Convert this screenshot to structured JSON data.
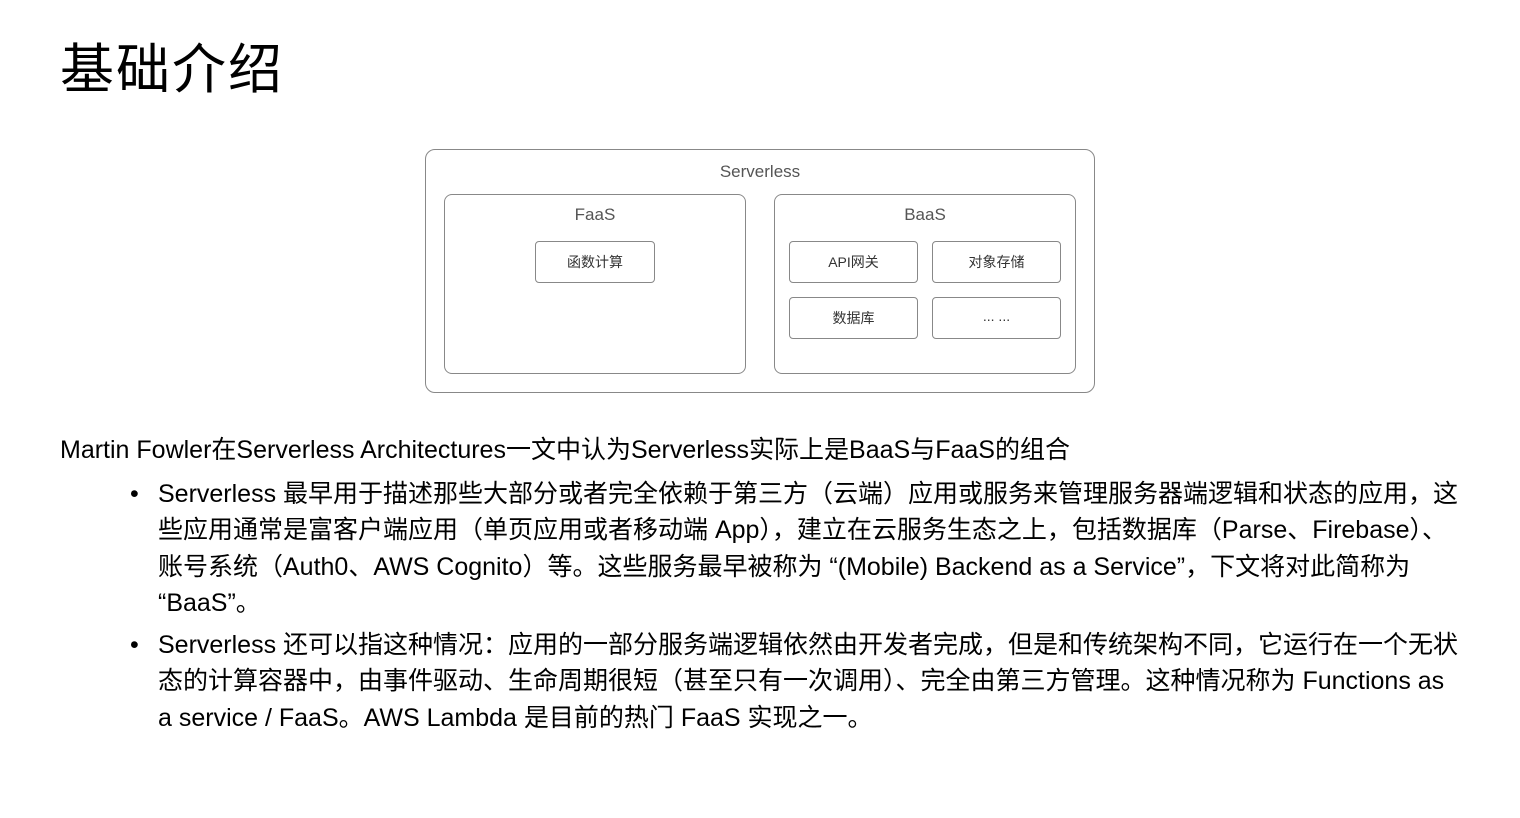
{
  "title": "基础介绍",
  "diagram": {
    "outer_label": "Serverless",
    "left": {
      "label": "FaaS",
      "items": [
        "函数计算"
      ]
    },
    "right": {
      "label": "BaaS",
      "items": [
        "API网关",
        "对象存储",
        "数据库",
        "... ..."
      ]
    },
    "border_color": "#888888",
    "background": "#ffffff",
    "label_color": "#555555",
    "item_text_color": "#333333"
  },
  "intro": "Martin Fowler在Serverless Architectures一文中认为Serverless实际上是BaaS与FaaS的组合",
  "bullets": [
    "Serverless 最早用于描述那些大部分或者完全依赖于第三方（云端）应用或服务来管理服务器端逻辑和状态的应用，这些应用通常是富客户端应用（单页应用或者移动端 App），建立在云服务生态之上，包括数据库（Parse、Firebase）、账号系统（Auth0、AWS Cognito）等。这些服务最早被称为 “(Mobile) Backend as a Service”，下文将对此简称为 “BaaS”。",
    "Serverless 还可以指这种情况：应用的一部分服务端逻辑依然由开发者完成，但是和传统架构不同，它运行在一个无状态的计算容器中，由事件驱动、生命周期很短（甚至只有一次调用）、完全由第三方管理。这种情况称为 Functions as a service / FaaS。AWS Lambda 是目前的热门 FaaS 实现之一。"
  ],
  "colors": {
    "text": "#000000",
    "background": "#ffffff"
  },
  "font_sizes": {
    "title": 54,
    "body": 25,
    "diagram_label": 17,
    "diagram_item": 14
  }
}
